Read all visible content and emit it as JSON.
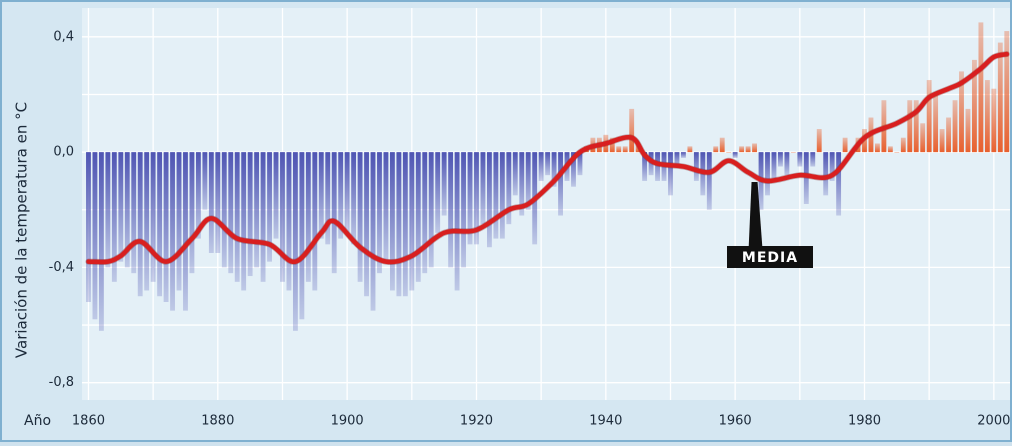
{
  "chart_data": {
    "type": "bar",
    "ylabel": "Variación de la temperatura en °C",
    "xlabel": "Año",
    "x": [
      1860,
      1861,
      1862,
      1863,
      1864,
      1865,
      1866,
      1867,
      1868,
      1869,
      1870,
      1871,
      1872,
      1873,
      1874,
      1875,
      1876,
      1877,
      1878,
      1879,
      1880,
      1881,
      1882,
      1883,
      1884,
      1885,
      1886,
      1887,
      1888,
      1889,
      1890,
      1891,
      1892,
      1893,
      1894,
      1895,
      1896,
      1897,
      1898,
      1899,
      1900,
      1901,
      1902,
      1903,
      1904,
      1905,
      1906,
      1907,
      1908,
      1909,
      1910,
      1911,
      1912,
      1913,
      1914,
      1915,
      1916,
      1917,
      1918,
      1919,
      1920,
      1921,
      1922,
      1923,
      1924,
      1925,
      1926,
      1927,
      1928,
      1929,
      1930,
      1931,
      1932,
      1933,
      1934,
      1935,
      1936,
      1937,
      1938,
      1939,
      1940,
      1941,
      1942,
      1943,
      1944,
      1945,
      1946,
      1947,
      1948,
      1949,
      1950,
      1951,
      1952,
      1953,
      1954,
      1955,
      1956,
      1957,
      1958,
      1959,
      1960,
      1961,
      1962,
      1963,
      1964,
      1965,
      1966,
      1967,
      1968,
      1969,
      1970,
      1971,
      1972,
      1973,
      1974,
      1975,
      1976,
      1977,
      1978,
      1979,
      1980,
      1981,
      1982,
      1983,
      1984,
      1985,
      1986,
      1987,
      1988,
      1989,
      1990,
      1991,
      1992,
      1993,
      1994,
      1995,
      1996,
      1997,
      1998,
      1999,
      2000,
      2001,
      2002
    ],
    "values": [
      -0.52,
      -0.58,
      -0.62,
      -0.4,
      -0.45,
      -0.38,
      -0.4,
      -0.42,
      -0.5,
      -0.48,
      -0.45,
      -0.5,
      -0.52,
      -0.55,
      -0.48,
      -0.55,
      -0.42,
      -0.3,
      -0.2,
      -0.35,
      -0.35,
      -0.4,
      -0.42,
      -0.45,
      -0.48,
      -0.43,
      -0.4,
      -0.45,
      -0.38,
      -0.3,
      -0.45,
      -0.48,
      -0.62,
      -0.58,
      -0.45,
      -0.48,
      -0.3,
      -0.32,
      -0.42,
      -0.3,
      -0.28,
      -0.32,
      -0.45,
      -0.5,
      -0.55,
      -0.42,
      -0.38,
      -0.48,
      -0.5,
      -0.5,
      -0.48,
      -0.45,
      -0.42,
      -0.4,
      -0.28,
      -0.22,
      -0.4,
      -0.48,
      -0.4,
      -0.32,
      -0.32,
      -0.25,
      -0.33,
      -0.3,
      -0.3,
      -0.25,
      -0.15,
      -0.22,
      -0.2,
      -0.32,
      -0.1,
      -0.08,
      -0.12,
      -0.22,
      -0.1,
      -0.12,
      -0.08,
      0.02,
      0.05,
      0.05,
      0.06,
      0.05,
      0.02,
      0.02,
      0.15,
      0.03,
      -0.1,
      -0.08,
      -0.1,
      -0.1,
      -0.15,
      -0.05,
      -0.02,
      0.02,
      -0.1,
      -0.15,
      -0.2,
      0.02,
      0.05,
      0.0,
      -0.02,
      0.02,
      0.02,
      0.03,
      -0.2,
      -0.15,
      -0.1,
      -0.05,
      -0.08,
      0.0,
      -0.05,
      -0.18,
      -0.05,
      0.08,
      -0.15,
      -0.1,
      -0.22,
      0.05,
      0.0,
      0.05,
      0.08,
      0.12,
      0.03,
      0.18,
      0.02,
      0.0,
      0.05,
      0.18,
      0.18,
      0.1,
      0.25,
      0.2,
      0.08,
      0.12,
      0.18,
      0.28,
      0.15,
      0.32,
      0.45,
      0.25,
      0.22,
      0.38,
      0.42
    ],
    "color_negative": "#4f55b3",
    "color_positive": "#e8602e",
    "media": {
      "name": "MEDIA",
      "color": "#d81f1f",
      "x": [
        1860,
        1863,
        1865,
        1868,
        1872,
        1876,
        1879,
        1883,
        1888,
        1892,
        1896,
        1898,
        1902,
        1906,
        1910,
        1915,
        1920,
        1925,
        1928,
        1932,
        1936,
        1940,
        1944,
        1946,
        1948,
        1952,
        1956,
        1959,
        1962,
        1965,
        1970,
        1975,
        1980,
        1985,
        1988,
        1990,
        1993,
        1995,
        1998,
        2000,
        2002
      ],
      "values": [
        -0.38,
        -0.38,
        -0.36,
        -0.31,
        -0.38,
        -0.3,
        -0.23,
        -0.3,
        -0.32,
        -0.38,
        -0.28,
        -0.24,
        -0.33,
        -0.38,
        -0.36,
        -0.28,
        -0.27,
        -0.2,
        -0.18,
        -0.1,
        0.0,
        0.03,
        0.05,
        -0.01,
        -0.04,
        -0.05,
        -0.07,
        -0.03,
        -0.07,
        -0.1,
        -0.08,
        -0.08,
        0.05,
        0.1,
        0.14,
        0.19,
        0.22,
        0.24,
        0.29,
        0.33,
        0.34
      ]
    },
    "xlim": [
      1859,
      2002.5
    ],
    "ylim": [
      -0.86,
      0.5
    ],
    "xticks": [
      1860,
      1880,
      1900,
      1920,
      1940,
      1960,
      1980,
      2000
    ],
    "yticks": [
      {
        "value": 0.4,
        "label": "0,4"
      },
      {
        "value": 0.0,
        "label": "0,0"
      },
      {
        "value": -0.4,
        "label": "-0,4"
      },
      {
        "value": -0.8,
        "label": "-0,8"
      }
    ],
    "ygrid_minor": [
      0.2,
      -0.2,
      -0.6
    ],
    "xgrid_minor": [
      1870,
      1890,
      1910,
      1930,
      1950,
      1970,
      1990
    ],
    "grid": true
  }
}
